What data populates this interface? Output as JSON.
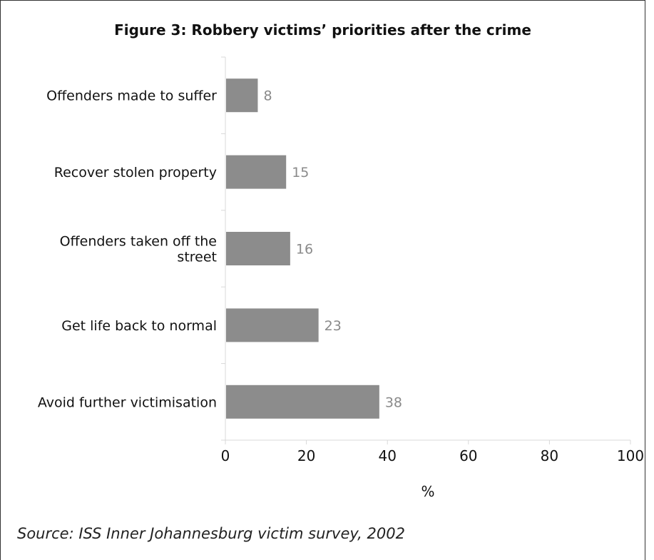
{
  "chart_data": {
    "type": "bar",
    "orientation": "horizontal",
    "title": "Figure 3: Robbery victims’ priorities after the crime",
    "categories": [
      "Offenders made to suffer",
      "Recover stolen property",
      "Offenders taken off the street",
      "Get life back to normal",
      "Avoid further victimisation"
    ],
    "category_lines": [
      [
        "Offenders made to suffer"
      ],
      [
        "Recover stolen property"
      ],
      [
        "Offenders taken off the",
        "street"
      ],
      [
        "Get life back to normal"
      ],
      [
        "Avoid further victimisation"
      ]
    ],
    "values": [
      8,
      15,
      16,
      23,
      38
    ],
    "xlabel": "%",
    "ylabel": "",
    "xlim": [
      0,
      100
    ],
    "xticks": [
      0,
      20,
      40,
      60,
      80,
      100
    ],
    "grid": false,
    "legend": "none",
    "bar_color": "#8c8c8c",
    "label_color": "#8a8a8a",
    "source": "Source: ISS Inner Johannesburg victim survey, 2002"
  }
}
